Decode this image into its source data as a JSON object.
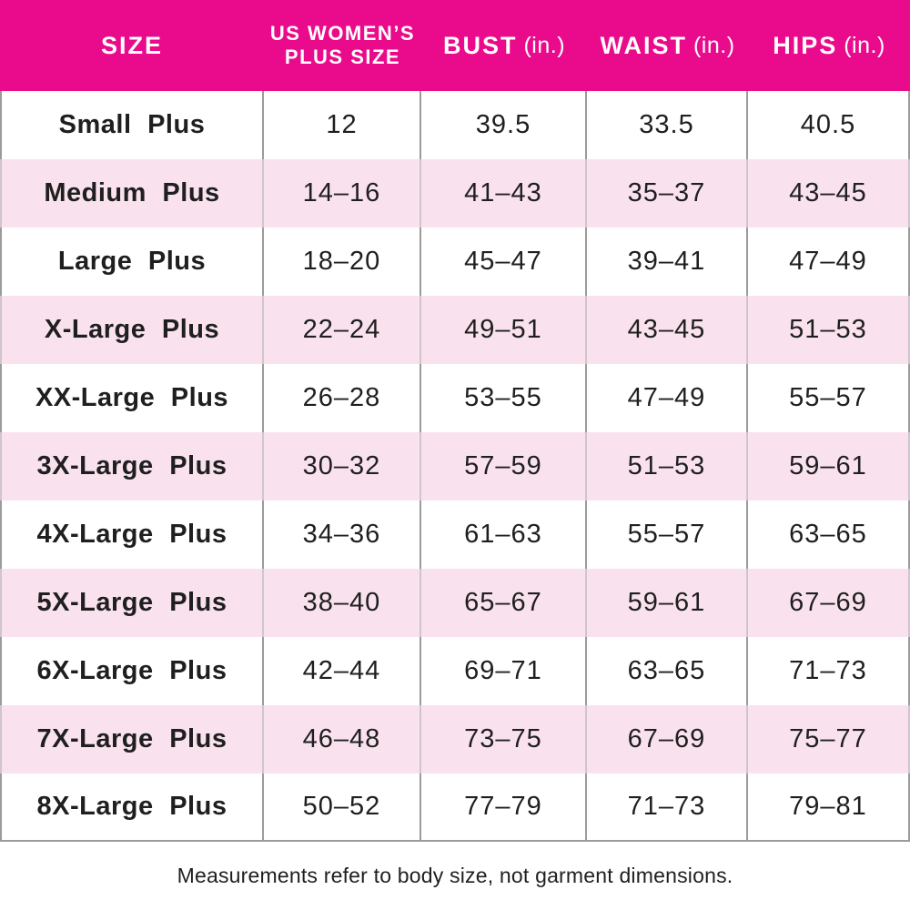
{
  "colors": {
    "header_bg": "#EA0B8C",
    "stripe_pink": "#F9E2EE",
    "grid_gray": "#9B9B9B",
    "grid_gray_on_pink": "#CFC6CC",
    "text_dark": "#1F1F1F",
    "header_text": "#FFFFFF"
  },
  "header": {
    "size_label": "SIZE",
    "plus_line1": "US WOMEN’S",
    "plus_line2": "PLUS SIZE",
    "bust_name": "BUST",
    "bust_unit": "(in.)",
    "waist_name": "WAIST",
    "waist_unit": "(in.)",
    "hips_name": "HIPS",
    "hips_unit": "(in.)"
  },
  "chart_data": {
    "type": "table",
    "columns": [
      "SIZE",
      "US WOMEN’S PLUS SIZE",
      "BUST (in.)",
      "WAIST (in.)",
      "HIPS (in.)"
    ],
    "rows": [
      {
        "size": "Small Plus",
        "plus_size": "12",
        "bust": "39.5",
        "waist": "33.5",
        "hips": "40.5"
      },
      {
        "size": "Medium Plus",
        "plus_size": "14–16",
        "bust": "41–43",
        "waist": "35–37",
        "hips": "43–45"
      },
      {
        "size": "Large Plus",
        "plus_size": "18–20",
        "bust": "45–47",
        "waist": "39–41",
        "hips": "47–49"
      },
      {
        "size": "X-Large Plus",
        "plus_size": "22–24",
        "bust": "49–51",
        "waist": "43–45",
        "hips": "51–53"
      },
      {
        "size": "XX-Large Plus",
        "plus_size": "26–28",
        "bust": "53–55",
        "waist": "47–49",
        "hips": "55–57"
      },
      {
        "size": "3X-Large Plus",
        "plus_size": "30–32",
        "bust": "57–59",
        "waist": "51–53",
        "hips": "59–61"
      },
      {
        "size": "4X-Large Plus",
        "plus_size": "34–36",
        "bust": "61–63",
        "waist": "55–57",
        "hips": "63–65"
      },
      {
        "size": "5X-Large Plus",
        "plus_size": "38–40",
        "bust": "65–67",
        "waist": "59–61",
        "hips": "67–69"
      },
      {
        "size": "6X-Large Plus",
        "plus_size": "42–44",
        "bust": "69–71",
        "waist": "63–65",
        "hips": "71–73"
      },
      {
        "size": "7X-Large Plus",
        "plus_size": "46–48",
        "bust": "73–75",
        "waist": "67–69",
        "hips": "75–77"
      },
      {
        "size": "8X-Large Plus",
        "plus_size": "50–52",
        "bust": "77–79",
        "waist": "71–73",
        "hips": "79–81"
      }
    ],
    "footnote": "Measurements refer to body size, not garment dimensions."
  }
}
